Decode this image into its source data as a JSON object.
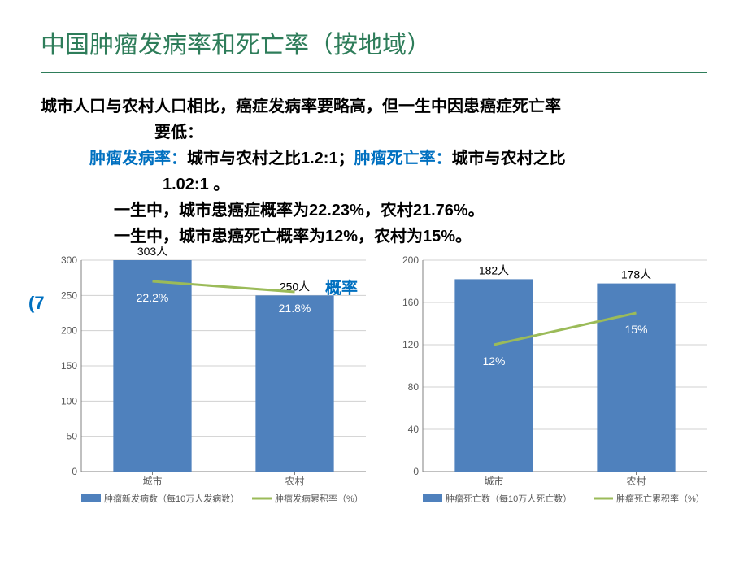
{
  "title": "中国肿瘤发病率和死亡率（按地域）",
  "text": {
    "line1": "城市人口与农村人口相比，癌症发病率要略高，但一生中因患癌症死亡率",
    "line2": "要低：",
    "line3a": "肿瘤发病率：",
    "line3b": "城市与农村之比1.2:1；",
    "line3c": "肿瘤死亡率：",
    "line3d": "城市与农村之比",
    "line4": "1.02:1 。",
    "line5": "一生中，城市患癌症概率为22.23%，农村21.76%。",
    "line6": "一生中，城市患癌死亡概率为12%，农村为15%。"
  },
  "seven_label": "(7",
  "prob_label": "概率",
  "chart_left": {
    "type": "bar",
    "categories": [
      "城市",
      "农村"
    ],
    "bar_values": [
      303,
      250
    ],
    "bar_labels": [
      "303人",
      "250人"
    ],
    "line_values": [
      270,
      255
    ],
    "line_labels": [
      "22.2%",
      "21.8%"
    ],
    "bar_color": "#4f81bd",
    "line_color": "#9bbb59",
    "text_in_bar_color": "#ffffff",
    "axis_color": "#808080",
    "grid_color": "#d0d0d0",
    "ylim": [
      0,
      300
    ],
    "ytick_step": 50,
    "yticks": [
      0,
      50,
      100,
      150,
      200,
      250,
      300
    ],
    "legend_bar": "肿瘤新发病数（每10万人发病数）",
    "legend_line": "肿瘤发病累积率（%）",
    "axis_fontsize": 12,
    "label_fontsize": 14
  },
  "chart_right": {
    "type": "bar",
    "categories": [
      "城市",
      "农村"
    ],
    "bar_values": [
      182,
      178
    ],
    "bar_labels": [
      "182人",
      "178人"
    ],
    "line_values": [
      120,
      150
    ],
    "line_labels": [
      "12%",
      "15%"
    ],
    "bar_color": "#4f81bd",
    "line_color": "#9bbb59",
    "text_in_bar_color": "#ffffff",
    "axis_color": "#808080",
    "grid_color": "#d0d0d0",
    "ylim": [
      0,
      200
    ],
    "ytick_step": 40,
    "yticks": [
      0,
      40,
      80,
      120,
      160,
      200
    ],
    "legend_bar": "肿瘤死亡数（每10万人死亡数）",
    "legend_line": "肿瘤死亡累积率（%）",
    "axis_fontsize": 12,
    "label_fontsize": 14
  }
}
